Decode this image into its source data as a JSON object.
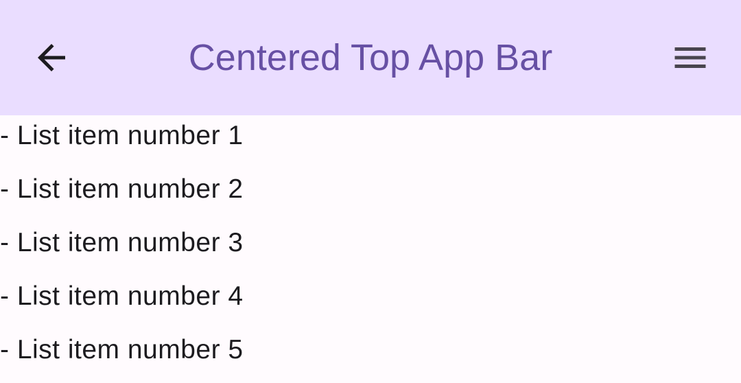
{
  "app_bar": {
    "title": "Centered Top App Bar",
    "navigation_icon": "arrow-back-icon",
    "action_icon": "menu-icon",
    "background_color": "#EADDFF",
    "title_color": "#6750A4"
  },
  "list": {
    "items": [
      "- List item number 1",
      "- List item number 2",
      "- List item number 3",
      "- List item number 4",
      "- List item number 5"
    ]
  }
}
